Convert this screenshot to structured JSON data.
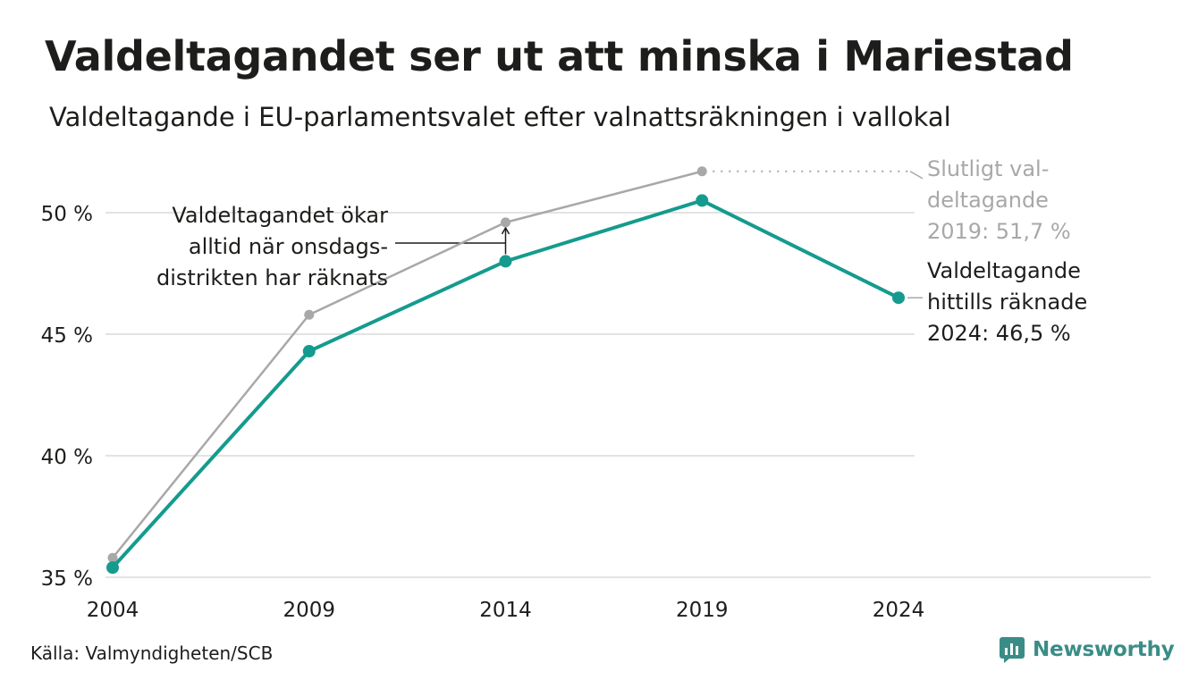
{
  "title": "Valdeltagandet ser ut att minska i Mariestad",
  "subtitle": "Valdeltagande i EU-parlamentsvalet efter valnattsräkningen i vallokal",
  "source": "Källa: Valmyndigheten/SCB",
  "brand": "Newsworthy",
  "colors": {
    "final": "#a8a8a8",
    "counted": "#149b8e",
    "text": "#1d1d1b",
    "grid": "#e3e3e3"
  },
  "annotations": {
    "left": [
      "Valdeltagandet ökar",
      "alltid när onsdags-",
      "distrikten har räknats"
    ],
    "gray": [
      "Slutligt val-",
      "deltagande",
      "2019: 51,7 %"
    ],
    "teal": [
      "Valdeltagande",
      "hittills räknade",
      "2024: 46,5 %"
    ]
  },
  "chart_data": {
    "type": "line",
    "x": [
      2004,
      2009,
      2014,
      2019,
      2024
    ],
    "x_tick_labels": [
      "2004",
      "2009",
      "2014",
      "2019",
      "2024"
    ],
    "y_ticks": [
      35,
      40,
      45,
      50
    ],
    "y_tick_labels": [
      "35 %",
      "40 %",
      "45 %",
      "50 %"
    ],
    "ylim": [
      35,
      52
    ],
    "grid": true,
    "series": [
      {
        "key": "final",
        "values": [
          35.8,
          45.8,
          49.6,
          51.7,
          null
        ]
      },
      {
        "key": "counted",
        "values": [
          35.4,
          44.3,
          48.0,
          50.5,
          46.5
        ]
      }
    ]
  }
}
